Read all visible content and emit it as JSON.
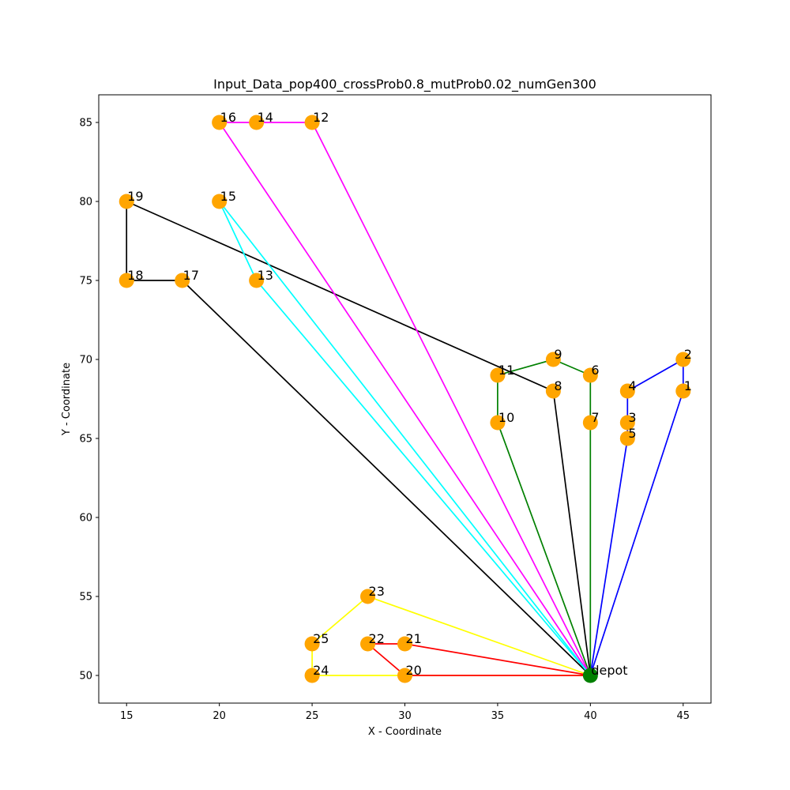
{
  "chart_data": {
    "type": "scatter",
    "title": "Input_Data_pop400_crossProb0.8_mutProb0.02_numGen300",
    "xlabel": "X - Coordinate",
    "ylabel": "Y - Coordinate",
    "xlim": [
      13.5,
      46.5
    ],
    "ylim": [
      48.25,
      86.75
    ],
    "xticks": [
      15,
      20,
      25,
      30,
      35,
      40,
      45
    ],
    "yticks": [
      50,
      55,
      60,
      65,
      70,
      75,
      80,
      85
    ],
    "grid": false,
    "depot": {
      "label": "depot",
      "x": 40,
      "y": 50,
      "color": "#008000"
    },
    "customer_color": "#FFA500",
    "points": [
      {
        "id": "1",
        "x": 45,
        "y": 68
      },
      {
        "id": "2",
        "x": 45,
        "y": 70
      },
      {
        "id": "3",
        "x": 42,
        "y": 66
      },
      {
        "id": "4",
        "x": 42,
        "y": 68
      },
      {
        "id": "5",
        "x": 42,
        "y": 65
      },
      {
        "id": "6",
        "x": 40,
        "y": 69
      },
      {
        "id": "7",
        "x": 40,
        "y": 66
      },
      {
        "id": "8",
        "x": 38,
        "y": 68
      },
      {
        "id": "9",
        "x": 38,
        "y": 70
      },
      {
        "id": "10",
        "x": 35,
        "y": 66
      },
      {
        "id": "11",
        "x": 35,
        "y": 69
      },
      {
        "id": "12",
        "x": 25,
        "y": 85
      },
      {
        "id": "13",
        "x": 22,
        "y": 75
      },
      {
        "id": "14",
        "x": 22,
        "y": 85
      },
      {
        "id": "15",
        "x": 20,
        "y": 80
      },
      {
        "id": "16",
        "x": 20,
        "y": 85
      },
      {
        "id": "17",
        "x": 18,
        "y": 75
      },
      {
        "id": "18",
        "x": 15,
        "y": 75
      },
      {
        "id": "19",
        "x": 15,
        "y": 80
      },
      {
        "id": "20",
        "x": 30,
        "y": 50
      },
      {
        "id": "21",
        "x": 30,
        "y": 52
      },
      {
        "id": "22",
        "x": 28,
        "y": 52
      },
      {
        "id": "23",
        "x": 28,
        "y": 55
      },
      {
        "id": "24",
        "x": 25,
        "y": 50
      },
      {
        "id": "25",
        "x": 25,
        "y": 52
      }
    ],
    "routes": [
      {
        "color": "#0000FF",
        "stops": [
          "depot",
          "5",
          "3",
          "4",
          "2",
          "1",
          "depot"
        ]
      },
      {
        "color": "#008000",
        "stops": [
          "depot",
          "7",
          "6",
          "9",
          "11",
          "10",
          "depot"
        ]
      },
      {
        "color": "#000000",
        "stops": [
          "depot",
          "8",
          "19",
          "18",
          "17",
          "depot"
        ]
      },
      {
        "color": "#FF00FF",
        "stops": [
          "depot",
          "12",
          "14",
          "16",
          "depot"
        ]
      },
      {
        "color": "#00FFFF",
        "stops": [
          "depot",
          "13",
          "15",
          "depot"
        ]
      },
      {
        "color": "#FFFF00",
        "stops": [
          "depot",
          "23",
          "25",
          "24",
          "depot"
        ]
      },
      {
        "color": "#FF0000",
        "stops": [
          "depot",
          "21",
          "22",
          "20",
          "depot"
        ]
      }
    ]
  }
}
